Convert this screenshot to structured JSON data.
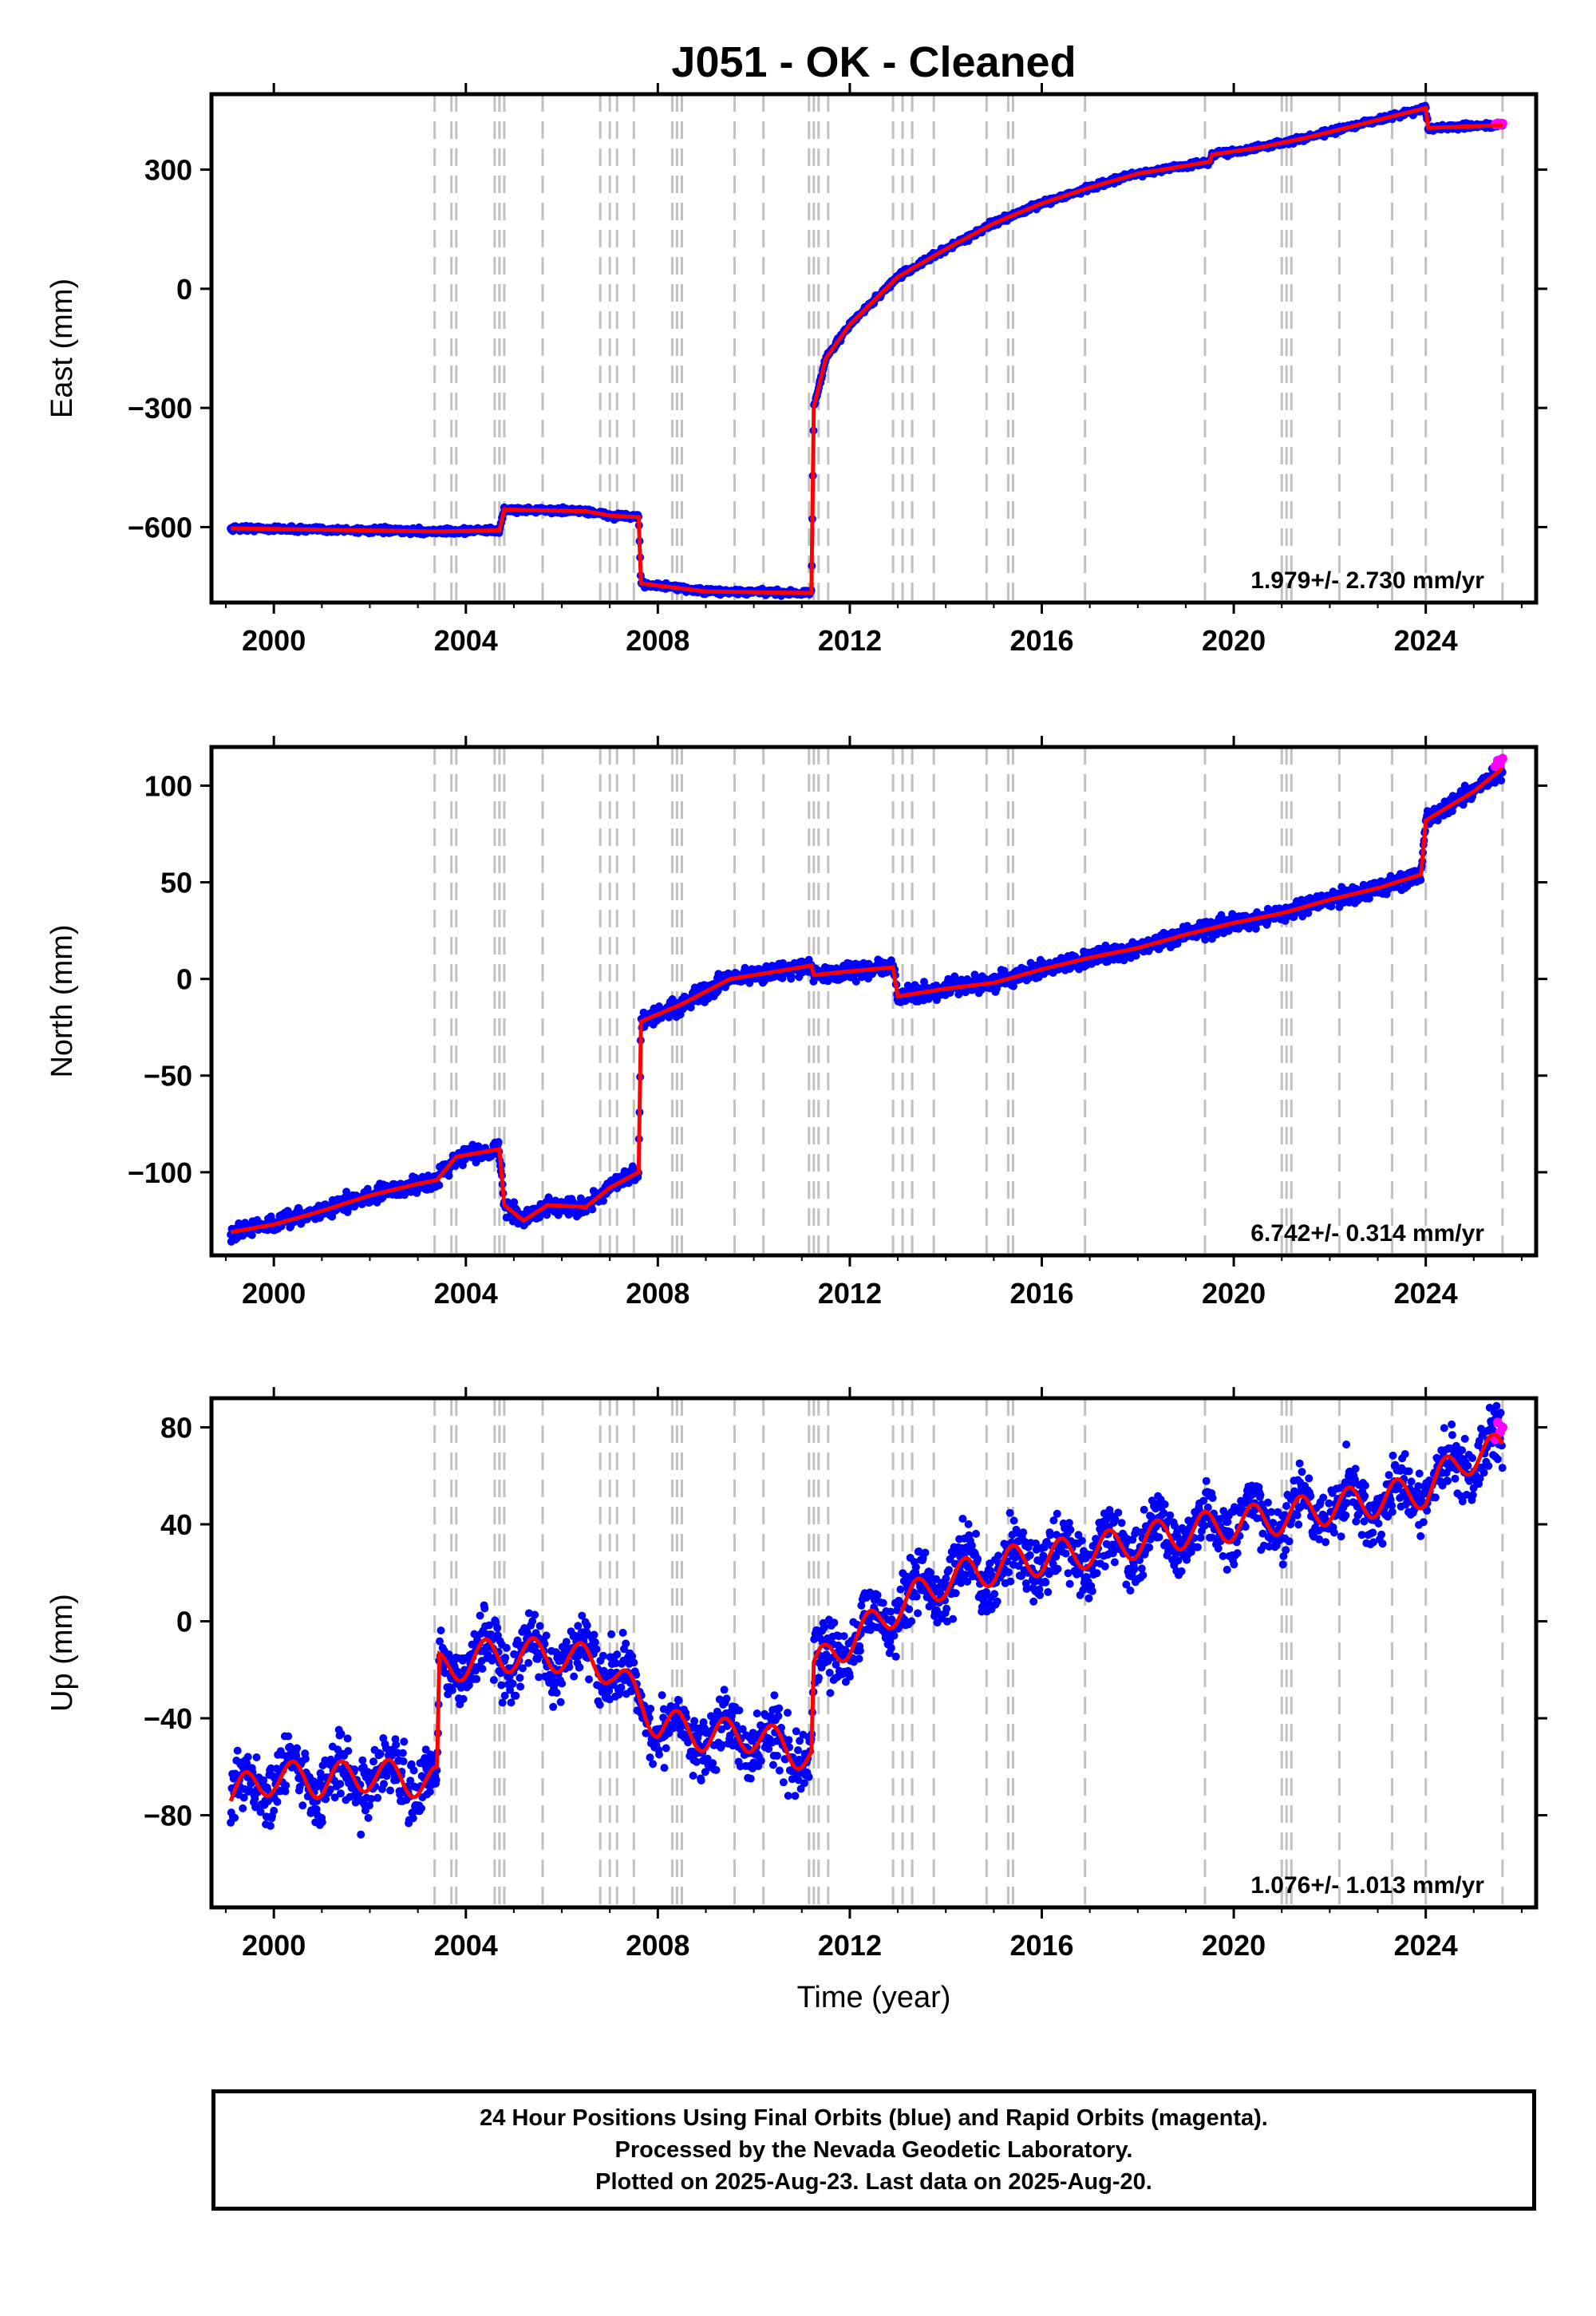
{
  "title": "J051  - OK - Cleaned",
  "x_axis_label": "Time (year)",
  "footer": {
    "line1": "24 Hour Positions Using Final Orbits (blue) and Rapid Orbits (magenta).",
    "line2": "Processed by the Nevada Geodetic Laboratory.",
    "line3": "Plotted on 2025-Aug-23. Last data on 2025-Aug-20."
  },
  "colors": {
    "final_orbits": "#0000ff",
    "rapid_orbits": "#ff00ff",
    "model": "#ff0000",
    "event_lines": "#c0c0c0"
  },
  "chart_data": [
    {
      "type": "scatter",
      "panel": "east",
      "ylabel": "East (mm)",
      "rate_text": "1.979+/- 2.730 mm/yr",
      "xlim": [
        1998.7,
        2026.3
      ],
      "ylim": [
        -790,
        490
      ],
      "xticks": [
        2000,
        2004,
        2008,
        2012,
        2016,
        2020,
        2024
      ],
      "yticks": [
        -600,
        -300,
        0,
        300
      ],
      "model_points": [
        [
          1999.1,
          -603
        ],
        [
          2003.4,
          -611
        ],
        [
          2004.7,
          -608
        ],
        [
          2004.8,
          -556
        ],
        [
          2006.5,
          -560
        ],
        [
          2007.0,
          -571
        ],
        [
          2007.6,
          -575
        ],
        [
          2007.65,
          -742
        ],
        [
          2009.0,
          -762
        ],
        [
          2011.2,
          -766
        ],
        [
          2011.25,
          -298
        ],
        [
          2011.5,
          -175
        ],
        [
          2012.0,
          -90
        ],
        [
          2013.0,
          30
        ],
        [
          2014.0,
          100
        ],
        [
          2015.0,
          165
        ],
        [
          2016.0,
          215
        ],
        [
          2017.0,
          255
        ],
        [
          2018.0,
          290
        ],
        [
          2019.5,
          320
        ],
        [
          2019.55,
          338
        ],
        [
          2020.5,
          355
        ],
        [
          2021.5,
          380
        ],
        [
          2022.5,
          410
        ],
        [
          2023.5,
          440
        ],
        [
          2024.0,
          455
        ],
        [
          2024.05,
          405
        ],
        [
          2025.6,
          412
        ]
      ],
      "rapid_points": [
        [
          2025.45,
          414
        ],
        [
          2025.5,
          417
        ],
        [
          2025.55,
          413
        ],
        [
          2025.6,
          416
        ]
      ],
      "scatter_spread_mm": 5
    },
    {
      "type": "scatter",
      "panel": "north",
      "ylabel": "North (mm)",
      "rate_text": "6.742+/- 0.314 mm/yr",
      "xlim": [
        1998.7,
        2026.3
      ],
      "ylim": [
        -143,
        120
      ],
      "xticks": [
        2000,
        2004,
        2008,
        2012,
        2016,
        2020,
        2024
      ],
      "yticks": [
        -100,
        -50,
        0,
        50,
        100
      ],
      "model_points": [
        [
          1999.1,
          -131
        ],
        [
          2000.0,
          -127
        ],
        [
          2001.0,
          -120
        ],
        [
          2002.0,
          -112
        ],
        [
          2003.0,
          -106
        ],
        [
          2003.4,
          -104
        ],
        [
          2003.8,
          -92
        ],
        [
          2004.7,
          -88
        ],
        [
          2004.8,
          -117
        ],
        [
          2005.2,
          -125
        ],
        [
          2005.7,
          -117
        ],
        [
          2006.5,
          -118
        ],
        [
          2007.0,
          -108
        ],
        [
          2007.6,
          -100
        ],
        [
          2007.65,
          -22
        ],
        [
          2008.5,
          -13
        ],
        [
          2009.5,
          0
        ],
        [
          2010.5,
          4
        ],
        [
          2011.2,
          7
        ],
        [
          2011.25,
          2
        ],
        [
          2012.0,
          4
        ],
        [
          2012.9,
          6
        ],
        [
          2013.0,
          -9
        ],
        [
          2014.0,
          -5
        ],
        [
          2015.0,
          -2
        ],
        [
          2016.0,
          5
        ],
        [
          2017.0,
          11
        ],
        [
          2018.0,
          16
        ],
        [
          2019.0,
          23
        ],
        [
          2020.0,
          29
        ],
        [
          2021.0,
          34
        ],
        [
          2022.0,
          41
        ],
        [
          2023.0,
          47
        ],
        [
          2023.9,
          54
        ],
        [
          2024.0,
          82
        ],
        [
          2025.0,
          97
        ],
        [
          2025.6,
          109
        ]
      ],
      "rapid_points": [
        [
          2025.45,
          110
        ],
        [
          2025.5,
          113
        ],
        [
          2025.55,
          111
        ],
        [
          2025.6,
          114
        ]
      ],
      "scatter_spread_mm": 3
    },
    {
      "type": "scatter",
      "panel": "up",
      "ylabel": "Up (mm)",
      "rate_text": "1.076+/- 1.013 mm/yr",
      "xlim": [
        1998.7,
        2026.3
      ],
      "ylim": [
        -118,
        92
      ],
      "xticks": [
        2000,
        2004,
        2008,
        2012,
        2016,
        2020,
        2024
      ],
      "yticks": [
        -80,
        -40,
        0,
        40,
        80
      ],
      "model_points": [
        [
          1999.1,
          -72
        ],
        [
          2000.0,
          -64
        ],
        [
          2001.0,
          -66
        ],
        [
          2002.0,
          -63
        ],
        [
          2003.4,
          -67
        ],
        [
          2003.45,
          -20
        ],
        [
          2004.5,
          -14
        ],
        [
          2006.0,
          -14
        ],
        [
          2007.0,
          -19
        ],
        [
          2008.0,
          -42
        ],
        [
          2009.0,
          -47
        ],
        [
          2010.0,
          -47
        ],
        [
          2011.2,
          -56
        ],
        [
          2011.25,
          -21
        ],
        [
          2011.6,
          -13
        ],
        [
          2012.4,
          -3
        ],
        [
          2013.0,
          6
        ],
        [
          2014.0,
          17
        ],
        [
          2015.0,
          22
        ],
        [
          2015.3,
          24
        ],
        [
          2016.0,
          26
        ],
        [
          2017.0,
          29
        ],
        [
          2018.0,
          33
        ],
        [
          2019.0,
          37
        ],
        [
          2020.0,
          40
        ],
        [
          2021.0,
          43
        ],
        [
          2022.0,
          47
        ],
        [
          2023.0,
          50
        ],
        [
          2024.0,
          54
        ],
        [
          2024.8,
          67
        ],
        [
          2025.6,
          71
        ]
      ],
      "seasonal_amplitude_mm": 7,
      "rapid_points": [
        [
          2025.45,
          75
        ],
        [
          2025.5,
          82
        ],
        [
          2025.55,
          78
        ],
        [
          2025.6,
          80
        ]
      ],
      "scatter_spread_mm": 9
    }
  ],
  "event_lines_years": [
    2003.35,
    2003.7,
    2003.8,
    2004.6,
    2004.7,
    2004.8,
    2005.6,
    2006.8,
    2007.0,
    2007.15,
    2007.5,
    2008.3,
    2008.4,
    2008.5,
    2009.6,
    2010.2,
    2011.15,
    2011.25,
    2011.35,
    2011.55,
    2012.9,
    2013.1,
    2013.3,
    2013.75,
    2014.85,
    2015.3,
    2015.4,
    2016.9,
    2019.4,
    2021.0,
    2021.1,
    2021.2,
    2022.2,
    2023.3,
    2024.0,
    2025.6
  ]
}
